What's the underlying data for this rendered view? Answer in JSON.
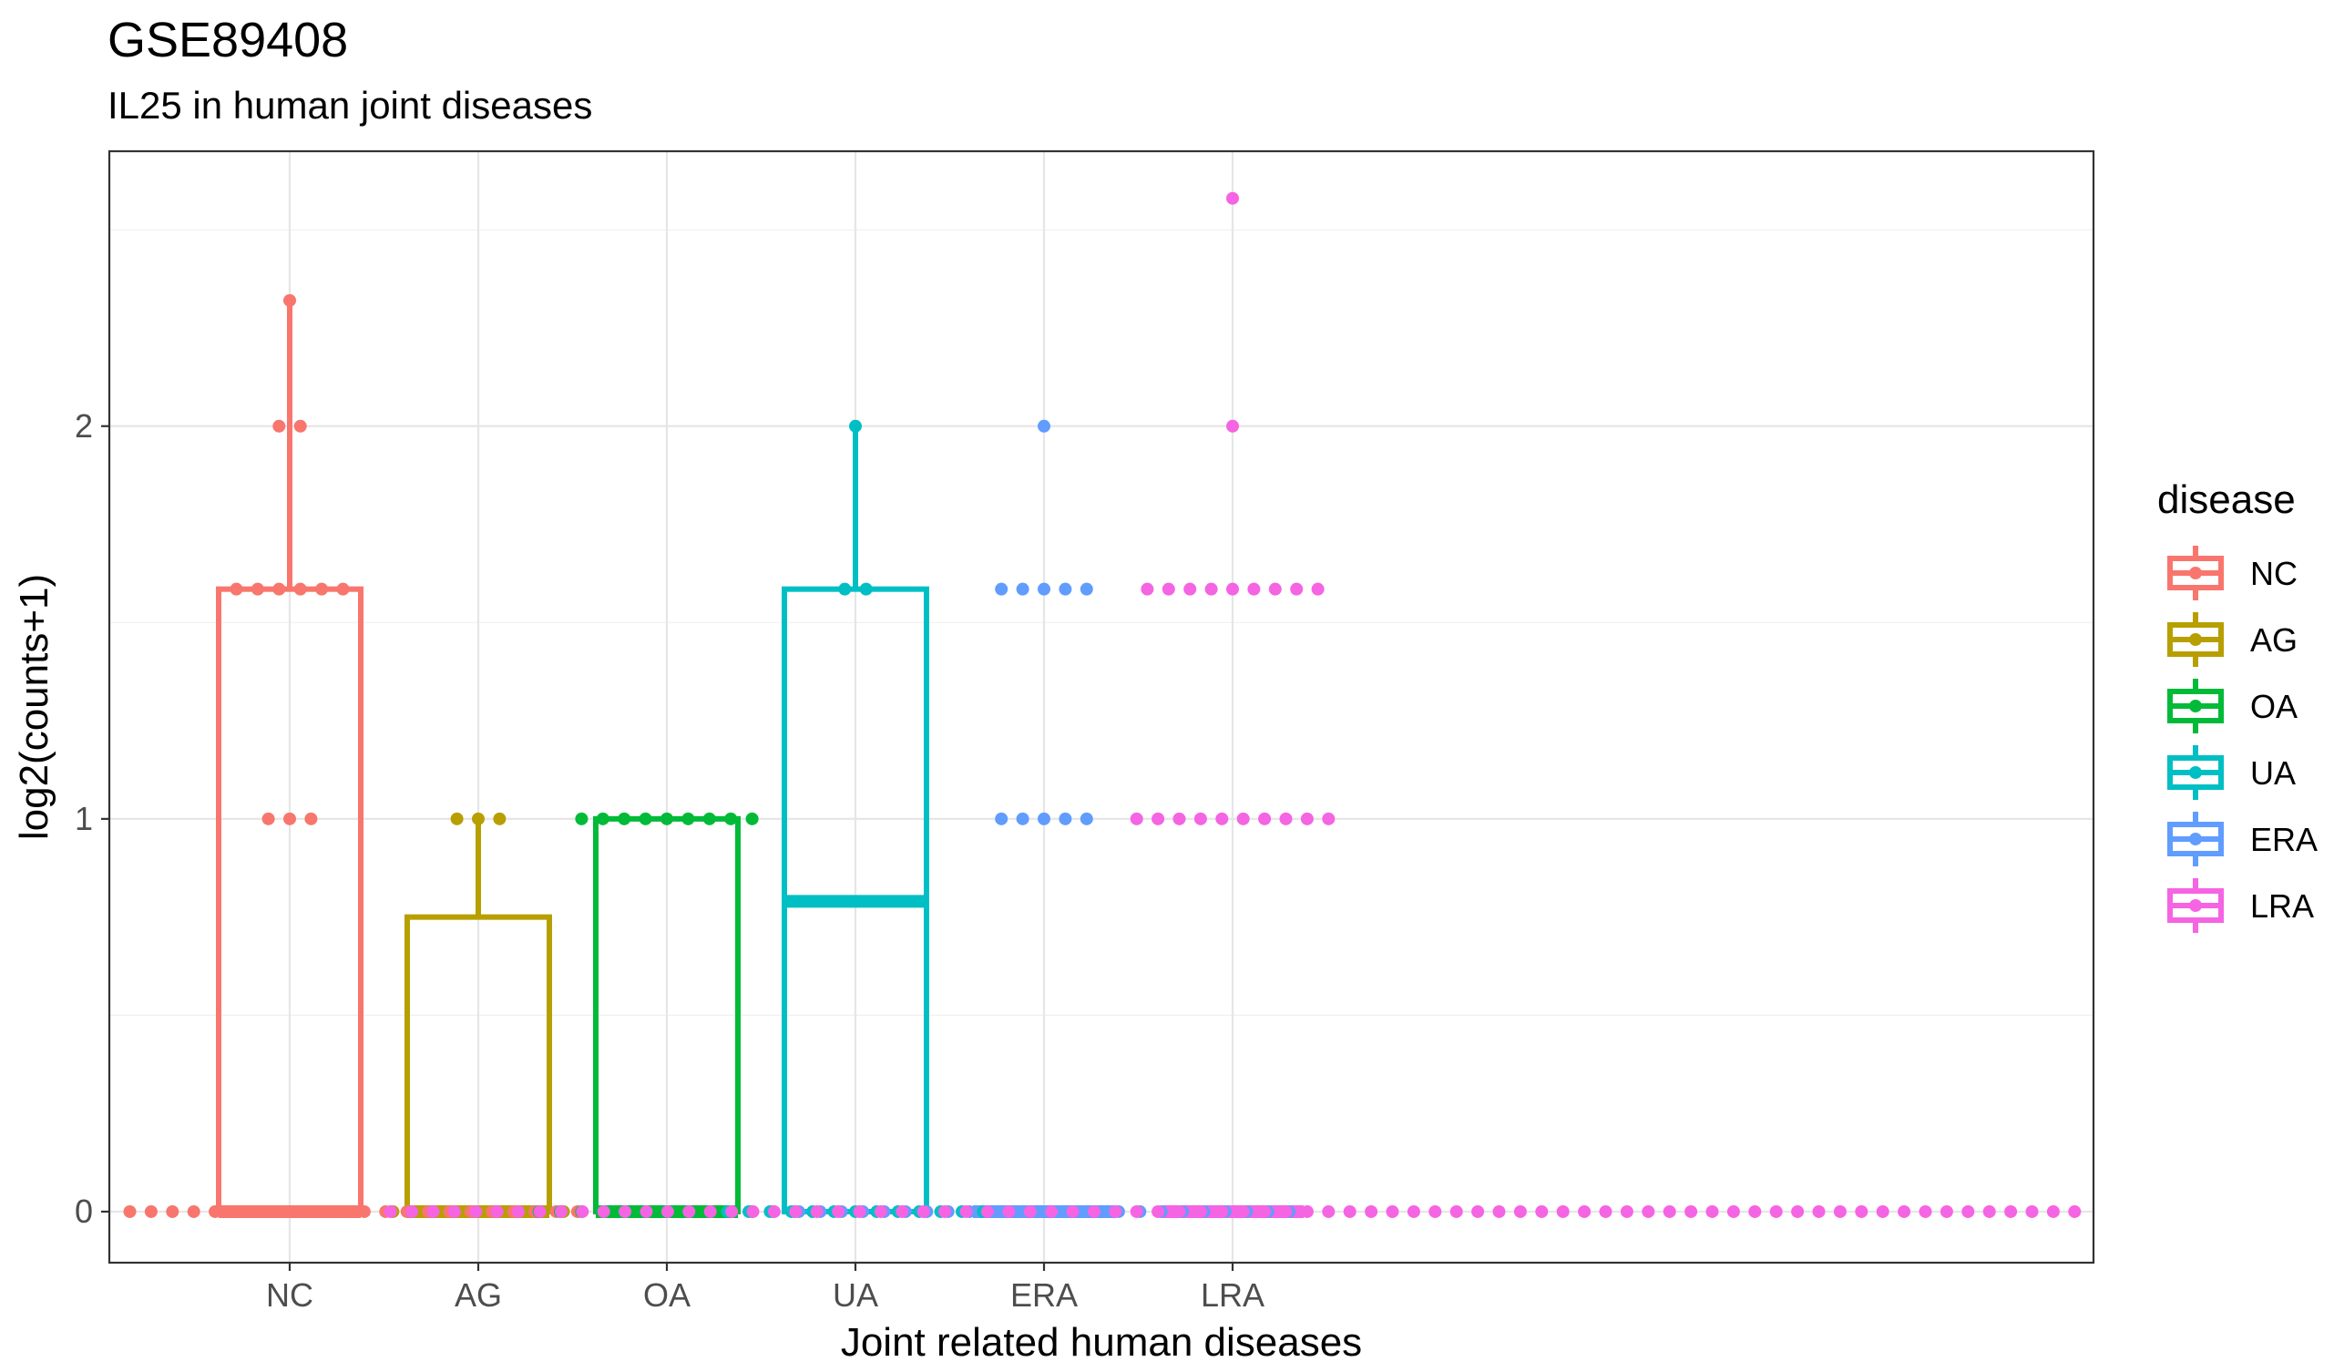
{
  "chart_data": {
    "type": "box",
    "title": "GSE89408",
    "subtitle": "IL25 in human joint diseases",
    "xlabel": "Joint related human diseases",
    "ylabel": "log2(counts+1)",
    "categories": [
      "NC",
      "AG",
      "OA",
      "UA",
      "ERA",
      "LRA"
    ],
    "yticks": [
      0,
      1,
      2
    ],
    "ylim": [
      -0.13,
      2.7
    ],
    "grid": true,
    "legend": {
      "title": "disease",
      "position": "right",
      "entries": [
        "NC",
        "AG",
        "OA",
        "UA",
        "ERA",
        "LRA"
      ]
    },
    "colors": {
      "NC": "#F8766D",
      "AG": "#B79F00",
      "OA": "#00BA38",
      "UA": "#00BFC4",
      "ERA": "#619CFF",
      "LRA": "#F564E3"
    },
    "series": [
      {
        "name": "NC",
        "box": {
          "lower": 0,
          "q1": 0,
          "median": 0,
          "q3": 1.585,
          "upper": 2.32
        },
        "points": [
          {
            "y": 2.32,
            "n": 1
          },
          {
            "y": 2,
            "n": 2
          },
          {
            "y": 1.585,
            "n": 6
          },
          {
            "y": 1,
            "n": 3
          },
          {
            "y": 0,
            "n": 28
          }
        ]
      },
      {
        "name": "AG",
        "box": {
          "lower": 0,
          "q1": 0,
          "median": 0,
          "q3": 0.75,
          "upper": 1
        },
        "points": [
          {
            "y": 1,
            "n": 3
          },
          {
            "y": 0,
            "n": 9
          }
        ]
      },
      {
        "name": "OA",
        "box": {
          "lower": 0,
          "q1": 0,
          "median": 0,
          "q3": 1,
          "upper": 1
        },
        "points": [
          {
            "y": 1,
            "n": 9
          },
          {
            "y": 0,
            "n": 13
          }
        ]
      },
      {
        "name": "UA",
        "box": {
          "lower": 0,
          "q1": 0,
          "median": 0.79,
          "q3": 1.585,
          "upper": 2
        },
        "points": [
          {
            "y": 2,
            "n": 1
          },
          {
            "y": 1.585,
            "n": 2
          },
          {
            "y": 0,
            "n": 13
          }
        ]
      },
      {
        "name": "ERA",
        "box": {
          "lower": 0,
          "q1": 0,
          "median": 0,
          "q3": 0,
          "upper": 0
        },
        "points": [
          {
            "y": 2,
            "n": 1
          },
          {
            "y": 1.585,
            "n": 5
          },
          {
            "y": 1,
            "n": 5
          },
          {
            "y": 0,
            "n": 24
          }
        ]
      },
      {
        "name": "LRA",
        "box": {
          "lower": 0,
          "q1": 0,
          "median": 0,
          "q3": 0,
          "upper": 0
        },
        "points": [
          {
            "y": 2.58,
            "n": 1
          },
          {
            "y": 2,
            "n": 1
          },
          {
            "y": 1.585,
            "n": 9
          },
          {
            "y": 1,
            "n": 10
          },
          {
            "y": 0,
            "n": 80
          }
        ]
      }
    ]
  }
}
